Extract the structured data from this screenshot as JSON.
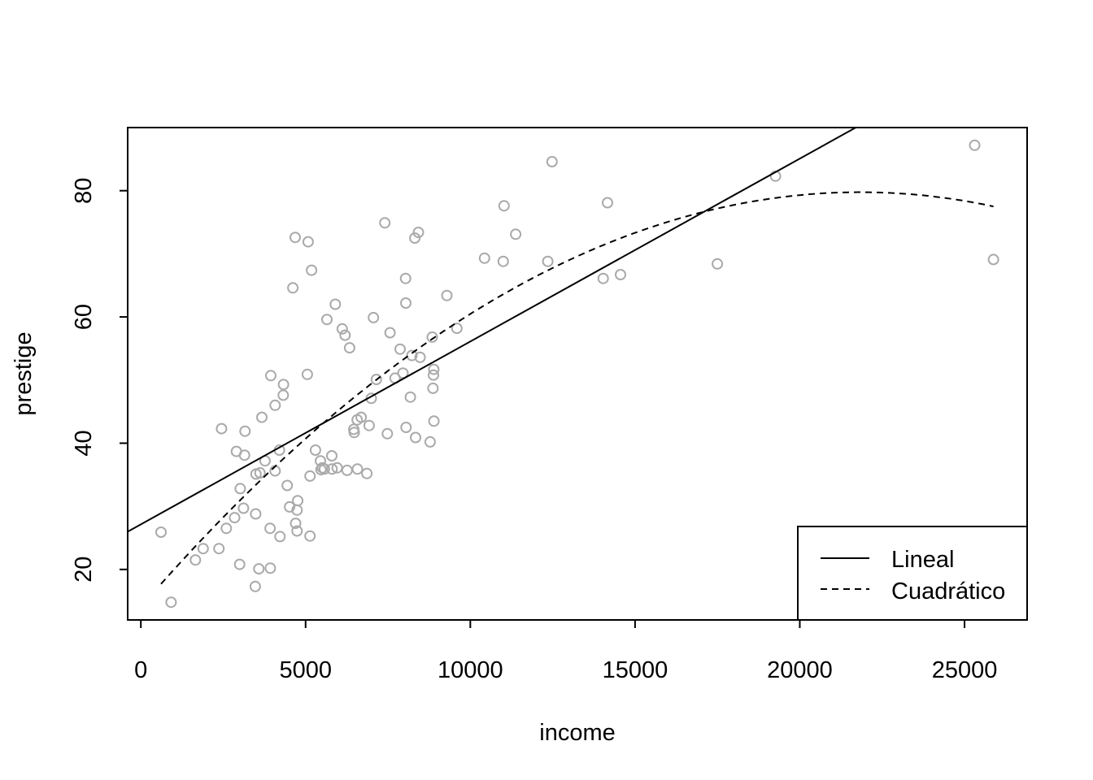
{
  "chart_data": {
    "type": "scatter",
    "title": "",
    "xlabel": "income",
    "ylabel": "prestige",
    "xlim": [
      -400,
      26900
    ],
    "ylim": [
      12,
      90
    ],
    "x_ticks": [
      0,
      5000,
      10000,
      15000,
      20000,
      25000
    ],
    "x_tick_labels": [
      "0",
      "5000",
      "10000",
      "15000",
      "20000",
      "25000"
    ],
    "y_ticks": [
      20,
      40,
      60,
      80
    ],
    "y_tick_labels": [
      "20",
      "40",
      "60",
      "80"
    ],
    "grid": false,
    "legend_position": "bottom-right",
    "colors": {
      "points": "#aaaaaa",
      "lines": "#000000",
      "frame": "#000000"
    },
    "series": [
      {
        "kind": "points",
        "marker": "open-circle",
        "points": [
          [
            611,
            25.9
          ],
          [
            918,
            14.8
          ],
          [
            1656,
            21.5
          ],
          [
            1890,
            23.3
          ],
          [
            2370,
            23.3
          ],
          [
            2448,
            42.3
          ],
          [
            2594,
            26.5
          ],
          [
            2847,
            28.2
          ],
          [
            2901,
            38.7
          ],
          [
            3000,
            20.8
          ],
          [
            3016,
            32.8
          ],
          [
            3116,
            29.7
          ],
          [
            3148,
            38.1
          ],
          [
            3161,
            41.9
          ],
          [
            3485,
            28.8
          ],
          [
            3472,
            17.3
          ],
          [
            3582,
            20.1
          ],
          [
            3495,
            35.1
          ],
          [
            3617,
            35.3
          ],
          [
            3674,
            44.1
          ],
          [
            3770,
            37.2
          ],
          [
            3923,
            26.5
          ],
          [
            3930,
            20.2
          ],
          [
            3944,
            50.7
          ],
          [
            4075,
            35.6
          ],
          [
            4076,
            46.0
          ],
          [
            4205,
            38.9
          ],
          [
            4224,
            25.2
          ],
          [
            4330,
            49.3
          ],
          [
            4321,
            47.6
          ],
          [
            4443,
            33.3
          ],
          [
            4514,
            29.9
          ],
          [
            4614,
            64.6
          ],
          [
            4686,
            72.6
          ],
          [
            4696,
            27.3
          ],
          [
            4741,
            29.4
          ],
          [
            4741,
            26.1
          ],
          [
            4761,
            30.9
          ],
          [
            5052,
            50.9
          ],
          [
            5078,
            71.9
          ],
          [
            5134,
            25.3
          ],
          [
            5134,
            34.8
          ],
          [
            5180,
            67.4
          ],
          [
            5299,
            38.9
          ],
          [
            5449,
            37.2
          ],
          [
            5468,
            35.8
          ],
          [
            5511,
            36.1
          ],
          [
            5571,
            35.9
          ],
          [
            5648,
            59.6
          ],
          [
            5795,
            38.0
          ],
          [
            5804,
            35.9
          ],
          [
            5902,
            62.0
          ],
          [
            5959,
            36.1
          ],
          [
            6112,
            58.1
          ],
          [
            6197,
            57.1
          ],
          [
            6259,
            35.7
          ],
          [
            6336,
            55.1
          ],
          [
            6462,
            42.2
          ],
          [
            6477,
            41.7
          ],
          [
            6565,
            43.7
          ],
          [
            6573,
            35.9
          ],
          [
            6686,
            44.1
          ],
          [
            6860,
            35.2
          ],
          [
            6928,
            42.8
          ],
          [
            6992,
            47.1
          ],
          [
            7059,
            59.9
          ],
          [
            7147,
            50.1
          ],
          [
            7405,
            74.9
          ],
          [
            7482,
            41.5
          ],
          [
            7562,
            57.5
          ],
          [
            7716,
            50.3
          ],
          [
            7869,
            54.9
          ],
          [
            7956,
            51.1
          ],
          [
            8034,
            66.1
          ],
          [
            8043,
            62.2
          ],
          [
            8049,
            42.5
          ],
          [
            8180,
            47.3
          ],
          [
            8226,
            53.9
          ],
          [
            8316,
            72.5
          ],
          [
            8337,
            40.9
          ],
          [
            8425,
            73.4
          ],
          [
            8475,
            53.6
          ],
          [
            8780,
            40.2
          ],
          [
            8845,
            56.8
          ],
          [
            8865,
            48.7
          ],
          [
            8881,
            50.8
          ],
          [
            8891,
            51.7
          ],
          [
            8895,
            43.5
          ],
          [
            9288,
            63.4
          ],
          [
            9593,
            58.2
          ],
          [
            10432,
            69.3
          ],
          [
            11000,
            68.8
          ],
          [
            11023,
            77.6
          ],
          [
            11377,
            73.1
          ],
          [
            12351,
            68.8
          ],
          [
            12480,
            84.6
          ],
          [
            14032,
            66.1
          ],
          [
            14163,
            78.1
          ],
          [
            14558,
            66.7
          ],
          [
            17498,
            68.4
          ],
          [
            19263,
            82.3
          ],
          [
            25308,
            87.2
          ],
          [
            25879,
            69.1
          ]
        ]
      },
      {
        "kind": "line",
        "name": "Lineal",
        "style": "solid",
        "intercept": 27.14,
        "slope": 0.002897
      },
      {
        "kind": "line",
        "name": "Cuadrático",
        "style": "dashed",
        "x_range": [
          611,
          25879
        ],
        "coefficients": [
          14.08,
          0.006017,
          -1.378e-07
        ]
      }
    ]
  }
}
